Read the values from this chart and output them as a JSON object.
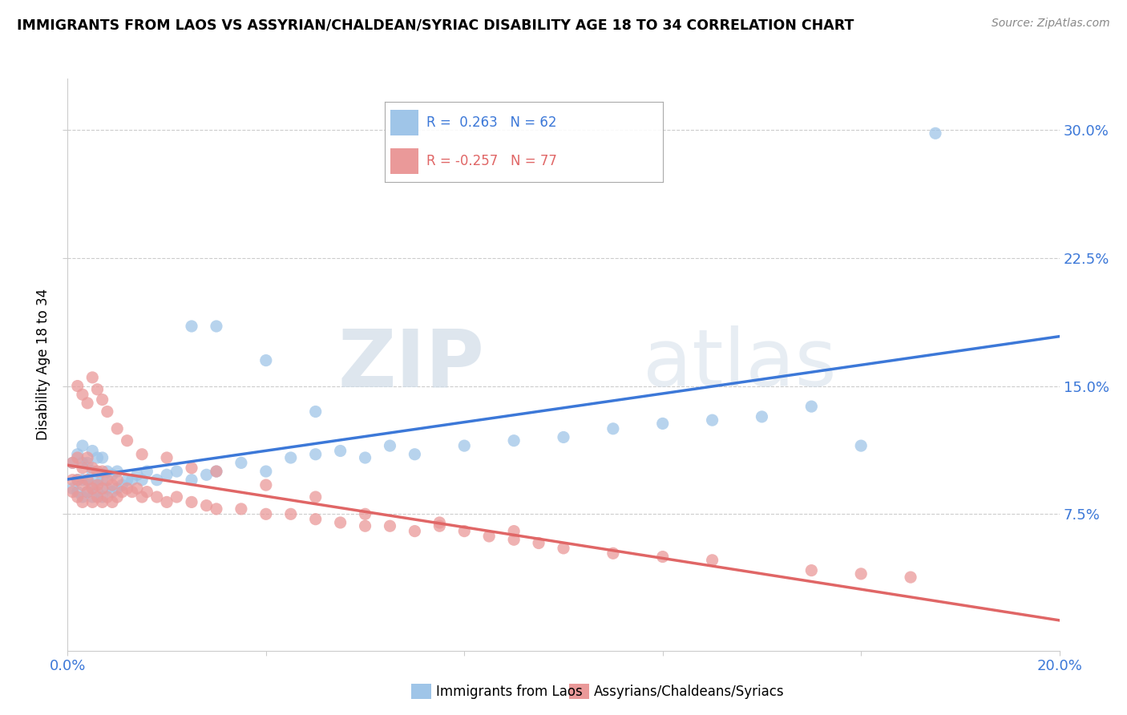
{
  "title": "IMMIGRANTS FROM LAOS VS ASSYRIAN/CHALDEAN/SYRIAC DISABILITY AGE 18 TO 34 CORRELATION CHART",
  "source": "Source: ZipAtlas.com",
  "ylabel": "Disability Age 18 to 34",
  "yticks_labels": [
    "7.5%",
    "15.0%",
    "22.5%",
    "30.0%"
  ],
  "yticks_vals": [
    0.075,
    0.15,
    0.225,
    0.3
  ],
  "xlim": [
    0.0,
    0.2
  ],
  "ylim": [
    -0.005,
    0.33
  ],
  "legend_label_blue": "Immigrants from Laos",
  "legend_label_pink": "Assyrians/Chaldeans/Syriacs",
  "blue_color": "#9fc5e8",
  "pink_color": "#ea9999",
  "trend_blue": "#3c78d8",
  "trend_pink": "#e06666",
  "watermark_zip": "ZIP",
  "watermark_atlas": "atlas",
  "blue_scatter_x": [
    0.001,
    0.001,
    0.002,
    0.002,
    0.002,
    0.003,
    0.003,
    0.003,
    0.003,
    0.004,
    0.004,
    0.004,
    0.005,
    0.005,
    0.005,
    0.005,
    0.006,
    0.006,
    0.006,
    0.007,
    0.007,
    0.007,
    0.008,
    0.008,
    0.009,
    0.009,
    0.01,
    0.01,
    0.011,
    0.012,
    0.013,
    0.014,
    0.015,
    0.016,
    0.018,
    0.02,
    0.022,
    0.025,
    0.028,
    0.03,
    0.035,
    0.04,
    0.045,
    0.05,
    0.055,
    0.06,
    0.065,
    0.07,
    0.08,
    0.09,
    0.1,
    0.11,
    0.12,
    0.13,
    0.14,
    0.15,
    0.025,
    0.03,
    0.04,
    0.05,
    0.16,
    0.175
  ],
  "blue_scatter_y": [
    0.09,
    0.105,
    0.088,
    0.095,
    0.11,
    0.085,
    0.095,
    0.105,
    0.115,
    0.088,
    0.095,
    0.105,
    0.085,
    0.092,
    0.1,
    0.112,
    0.088,
    0.095,
    0.108,
    0.085,
    0.095,
    0.108,
    0.09,
    0.1,
    0.088,
    0.098,
    0.09,
    0.1,
    0.092,
    0.095,
    0.095,
    0.098,
    0.095,
    0.1,
    0.095,
    0.098,
    0.1,
    0.095,
    0.098,
    0.1,
    0.105,
    0.1,
    0.108,
    0.11,
    0.112,
    0.108,
    0.115,
    0.11,
    0.115,
    0.118,
    0.12,
    0.125,
    0.128,
    0.13,
    0.132,
    0.138,
    0.185,
    0.185,
    0.165,
    0.135,
    0.115,
    0.298
  ],
  "pink_scatter_x": [
    0.001,
    0.001,
    0.001,
    0.002,
    0.002,
    0.002,
    0.003,
    0.003,
    0.003,
    0.004,
    0.004,
    0.004,
    0.005,
    0.005,
    0.005,
    0.006,
    0.006,
    0.006,
    0.007,
    0.007,
    0.007,
    0.008,
    0.008,
    0.009,
    0.009,
    0.01,
    0.01,
    0.011,
    0.012,
    0.013,
    0.014,
    0.015,
    0.016,
    0.018,
    0.02,
    0.022,
    0.025,
    0.028,
    0.03,
    0.035,
    0.04,
    0.045,
    0.05,
    0.055,
    0.06,
    0.065,
    0.07,
    0.075,
    0.08,
    0.085,
    0.09,
    0.095,
    0.1,
    0.11,
    0.12,
    0.13,
    0.15,
    0.16,
    0.17,
    0.002,
    0.003,
    0.004,
    0.005,
    0.006,
    0.007,
    0.008,
    0.01,
    0.012,
    0.015,
    0.02,
    0.025,
    0.03,
    0.04,
    0.05,
    0.06,
    0.075,
    0.09
  ],
  "pink_scatter_y": [
    0.088,
    0.095,
    0.105,
    0.085,
    0.095,
    0.108,
    0.082,
    0.092,
    0.102,
    0.088,
    0.095,
    0.108,
    0.082,
    0.09,
    0.102,
    0.085,
    0.092,
    0.1,
    0.082,
    0.09,
    0.1,
    0.085,
    0.095,
    0.082,
    0.092,
    0.085,
    0.095,
    0.088,
    0.09,
    0.088,
    0.09,
    0.085,
    0.088,
    0.085,
    0.082,
    0.085,
    0.082,
    0.08,
    0.078,
    0.078,
    0.075,
    0.075,
    0.072,
    0.07,
    0.068,
    0.068,
    0.065,
    0.068,
    0.065,
    0.062,
    0.06,
    0.058,
    0.055,
    0.052,
    0.05,
    0.048,
    0.042,
    0.04,
    0.038,
    0.15,
    0.145,
    0.14,
    0.155,
    0.148,
    0.142,
    0.135,
    0.125,
    0.118,
    0.11,
    0.108,
    0.102,
    0.1,
    0.092,
    0.085,
    0.075,
    0.07,
    0.065
  ]
}
